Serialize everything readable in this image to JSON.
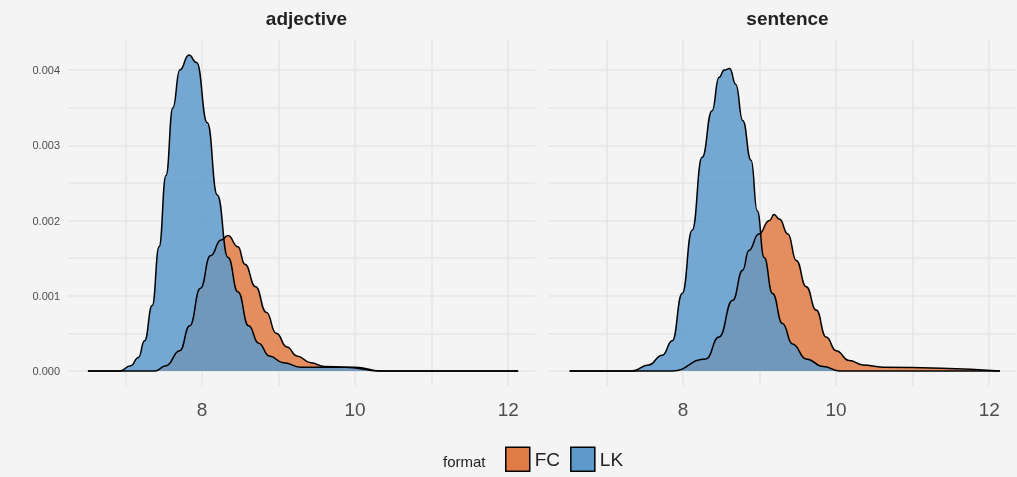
{
  "chart_data": [
    {
      "type": "area",
      "title": "adjective",
      "legend": "bottom",
      "legend_title": "format",
      "grid": true,
      "line_style": "solid",
      "marker": "none",
      "xlim": [
        6.25,
        12.35
      ],
      "xticks": [
        {
          "value": 7,
          "label": null
        },
        8,
        {
          "value": 9,
          "label": null
        },
        10,
        {
          "value": 11,
          "label": null
        },
        12
      ],
      "ylim": [
        -0.0002,
        0.0044
      ],
      "yticks": [
        {
          "value": 0,
          "label": "0.000"
        },
        {
          "value": 0.0005,
          "label": null
        },
        {
          "value": 0.001,
          "label": "0.001"
        },
        {
          "value": 0.0015,
          "label": null
        },
        {
          "value": 0.002,
          "label": "0.002"
        },
        {
          "value": 0.0025,
          "label": null
        },
        {
          "value": 0.003,
          "label": "0.003"
        },
        {
          "value": 0.0035,
          "label": null
        },
        {
          "value": 0.004,
          "label": "0.004"
        }
      ],
      "series": [
        {
          "name": "FC",
          "color": "#e07b45",
          "x": [
            6.51,
            7.0,
            7.39,
            7.53,
            7.71,
            7.84,
            7.98,
            8.11,
            8.25,
            8.34,
            8.47,
            8.56,
            8.7,
            8.84,
            8.97,
            9.11,
            9.24,
            9.42,
            9.6,
            9.87,
            10.32,
            12.13
          ],
          "values": [
            0,
            0,
            0,
            7e-05,
            0.00027,
            0.0006,
            0.0011,
            0.00153,
            0.00174,
            0.0018,
            0.00165,
            0.00142,
            0.00112,
            0.00078,
            0.0005,
            0.00032,
            0.0002,
            0.00011,
            6e-05,
            5e-05,
            0,
            0
          ]
        },
        {
          "name": "LK",
          "color": "#5d99cb",
          "x": [
            6.51,
            6.93,
            7.07,
            7.17,
            7.25,
            7.35,
            7.44,
            7.53,
            7.62,
            7.71,
            7.83,
            7.93,
            8.07,
            8.2,
            8.34,
            8.47,
            8.61,
            8.74,
            8.88,
            9.06,
            9.29,
            9.65,
            10.0,
            10.33,
            12.13
          ],
          "values": [
            0,
            0,
            7e-05,
            0.00018,
            0.0004,
            0.00087,
            0.00165,
            0.0026,
            0.0035,
            0.004,
            0.0042,
            0.0041,
            0.0033,
            0.00234,
            0.00151,
            0.00105,
            0.0006,
            0.00037,
            0.0002,
            0.00011,
            5e-05,
            5e-05,
            5e-05,
            0,
            0
          ]
        }
      ]
    },
    {
      "type": "area",
      "title": "sentence",
      "grid": true,
      "line_style": "solid",
      "marker": "none",
      "tick_labels": "x",
      "xlim": [
        6.25,
        12.35
      ],
      "xticks": [
        {
          "value": 7,
          "label": null
        },
        8,
        {
          "value": 9,
          "label": null
        },
        10,
        {
          "value": 11,
          "label": null
        },
        12
      ],
      "ylim": [
        -0.0002,
        0.0044
      ],
      "yticks": [
        {
          "value": 0,
          "label": null
        },
        {
          "value": 0.0005,
          "label": null
        },
        {
          "value": 0.001,
          "label": null
        },
        {
          "value": 0.0015,
          "label": null
        },
        {
          "value": 0.002,
          "label": null
        },
        {
          "value": 0.0025,
          "label": null
        },
        {
          "value": 0.003,
          "label": null
        },
        {
          "value": 0.0035,
          "label": null
        },
        {
          "value": 0.004,
          "label": null
        }
      ],
      "series": [
        {
          "color": "#e07b45",
          "x": [
            6.52,
            7.86,
            8.3,
            8.47,
            8.65,
            8.78,
            8.86,
            8.99,
            9.13,
            9.19,
            9.26,
            9.37,
            9.48,
            9.61,
            9.74,
            9.87,
            10.0,
            10.17,
            10.35,
            10.61,
            12.14
          ],
          "values": [
            0,
            0,
            0.00016,
            0.00045,
            0.00094,
            0.00134,
            0.0016,
            0.00182,
            0.002,
            0.00208,
            0.00202,
            0.00182,
            0.00147,
            0.00112,
            0.00081,
            0.00045,
            0.00027,
            0.00014,
            8e-05,
            5e-05,
            0
          ]
        },
        {
          "color": "#5d99cb",
          "x": [
            6.52,
            7.34,
            7.55,
            7.73,
            7.86,
            7.99,
            8.12,
            8.25,
            8.38,
            8.47,
            8.54,
            8.61,
            8.69,
            8.78,
            8.89,
            8.97,
            9.06,
            9.17,
            9.3,
            9.43,
            9.61,
            9.83,
            10.04,
            12.14
          ],
          "values": [
            0,
            0,
            8e-05,
            0.00021,
            0.0004,
            0.00103,
            0.00187,
            0.00284,
            0.00346,
            0.0039,
            0.004,
            0.00402,
            0.00381,
            0.00333,
            0.0028,
            0.00213,
            0.00151,
            0.00103,
            0.00063,
            0.00036,
            0.00016,
            6e-05,
            0,
            0
          ]
        }
      ]
    }
  ]
}
